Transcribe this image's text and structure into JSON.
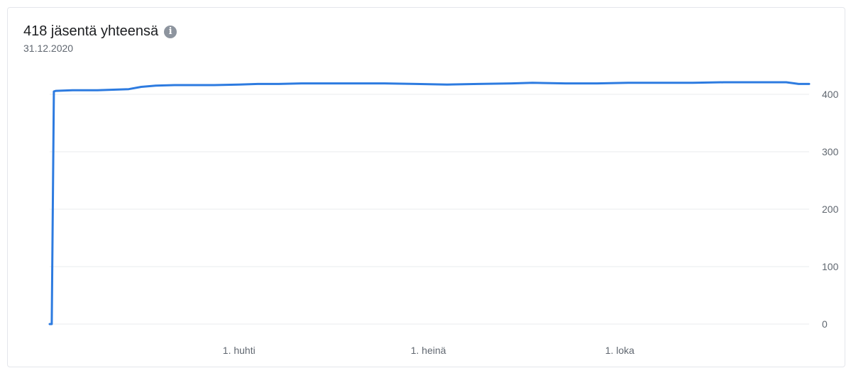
{
  "header": {
    "title": "418 jäsentä yhteensä",
    "subtitle": "31.12.2020",
    "info_icon": "info-icon"
  },
  "colors": {
    "line": "#2d7be0",
    "grid": "#e9ebee",
    "text_secondary": "#606770"
  },
  "chart_data": {
    "type": "line",
    "title": "418 jäsentä yhteensä",
    "subtitle": "31.12.2020",
    "xlabel": "",
    "ylabel": "",
    "y_axis_position": "right",
    "grid": "horizontal",
    "ylim": [
      0,
      400
    ],
    "yticks": [
      0,
      100,
      200,
      300,
      400
    ],
    "xlim": [
      "2020-01-01",
      "2020-12-31"
    ],
    "xticks": [
      {
        "date": "2020-04-01",
        "label": "1. huhti"
      },
      {
        "date": "2020-07-01",
        "label": "1. heinä"
      },
      {
        "date": "2020-10-01",
        "label": "1. loka"
      }
    ],
    "series": [
      {
        "x": [
          "2020-01-01",
          "2020-01-02",
          "2020-01-03",
          "2020-01-04",
          "2020-01-12",
          "2020-01-24",
          "2020-02-08",
          "2020-02-14",
          "2020-02-21",
          "2020-03-01",
          "2020-03-20",
          "2020-04-01",
          "2020-04-10",
          "2020-04-20",
          "2020-05-01",
          "2020-05-20",
          "2020-06-10",
          "2020-06-25",
          "2020-07-10",
          "2020-07-25",
          "2020-08-10",
          "2020-08-20",
          "2020-09-05",
          "2020-09-20",
          "2020-10-05",
          "2020-10-20",
          "2020-11-05",
          "2020-11-20",
          "2020-12-05",
          "2020-12-20",
          "2020-12-26",
          "2020-12-31"
        ],
        "y": [
          0,
          0,
          405,
          406,
          407,
          407,
          409,
          413,
          415,
          416,
          416,
          417,
          418,
          418,
          419,
          419,
          419,
          418,
          417,
          418,
          419,
          420,
          419,
          419,
          420,
          420,
          420,
          421,
          421,
          421,
          418,
          418
        ]
      }
    ]
  }
}
